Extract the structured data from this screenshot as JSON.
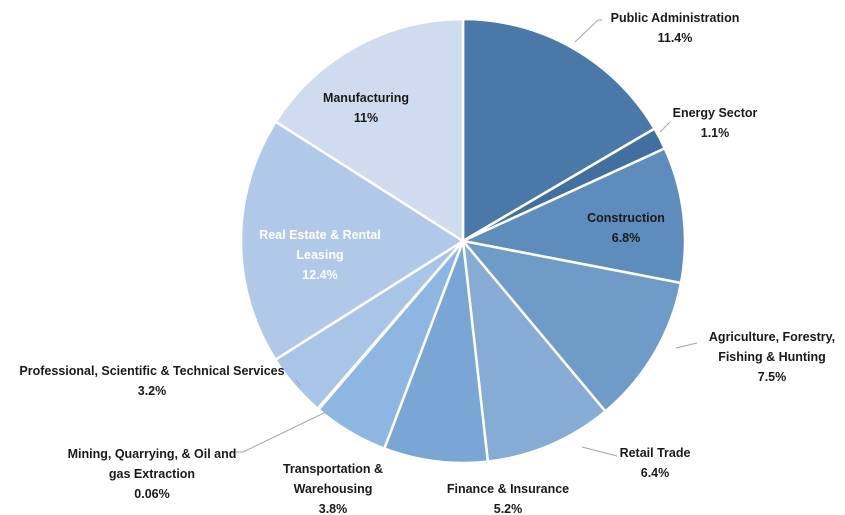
{
  "chart_data": {
    "type": "pie",
    "categories": [
      "Public Administration",
      "Energy Sector",
      "Construction",
      "Agriculture, Forestry, Fishing & Hunting",
      "Retail Trade",
      "Finance & Insurance",
      "Transportation & Warehousing",
      "Mining, Quarrying, & Oil and gas Extraction",
      "Professional, Scientific & Technical Services",
      "Real Estate & Rental Leasing",
      "Manufacturing"
    ],
    "values": [
      11.4,
      1.1,
      6.8,
      7.5,
      6.4,
      5.2,
      3.8,
      0.06,
      3.2,
      12.4,
      11
    ],
    "value_labels": [
      "11.4%",
      "1.1%",
      "6.8%",
      "7.5%",
      "6.4%",
      "5.2%",
      "3.8%",
      "0.06%",
      "3.2%",
      "12.4%",
      "11%"
    ],
    "colors": [
      "#4a78a8",
      "#416f9f",
      "#5e8dbd",
      "#6f9bc8",
      "#86acd5",
      "#7aa6d5",
      "#8db7e2",
      "#9cbfe4",
      "#a8c4e6",
      "#b2c8e8",
      "#cfdcef"
    ]
  }
}
